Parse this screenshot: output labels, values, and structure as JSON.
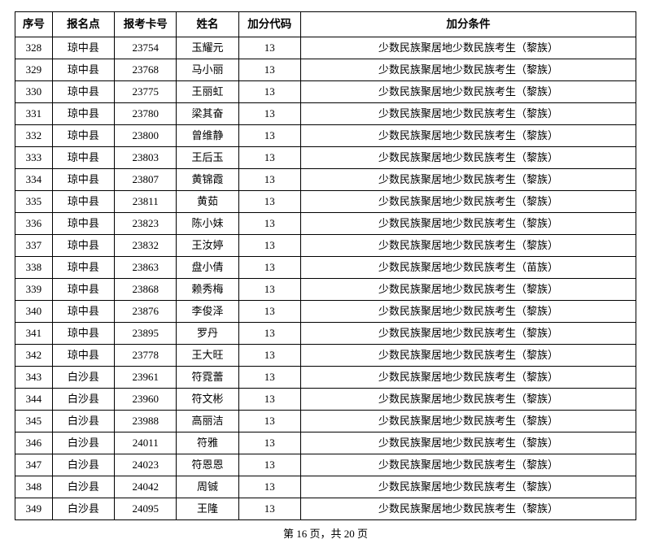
{
  "columns": [
    "序号",
    "报名点",
    "报考卡号",
    "姓名",
    "加分代码",
    "加分条件"
  ],
  "rows": [
    [
      "328",
      "琼中县",
      "23754",
      "玉耀元",
      "13",
      "少数民族聚居地少数民族考生（黎族）"
    ],
    [
      "329",
      "琼中县",
      "23768",
      "马小丽",
      "13",
      "少数民族聚居地少数民族考生（黎族）"
    ],
    [
      "330",
      "琼中县",
      "23775",
      "王丽虹",
      "13",
      "少数民族聚居地少数民族考生（黎族）"
    ],
    [
      "331",
      "琼中县",
      "23780",
      "梁其奋",
      "13",
      "少数民族聚居地少数民族考生（黎族）"
    ],
    [
      "332",
      "琼中县",
      "23800",
      "曾维静",
      "13",
      "少数民族聚居地少数民族考生（黎族）"
    ],
    [
      "333",
      "琼中县",
      "23803",
      "王后玉",
      "13",
      "少数民族聚居地少数民族考生（黎族）"
    ],
    [
      "334",
      "琼中县",
      "23807",
      "黄锦霞",
      "13",
      "少数民族聚居地少数民族考生（黎族）"
    ],
    [
      "335",
      "琼中县",
      "23811",
      "黄茹",
      "13",
      "少数民族聚居地少数民族考生（黎族）"
    ],
    [
      "336",
      "琼中县",
      "23823",
      "陈小妹",
      "13",
      "少数民族聚居地少数民族考生（黎族）"
    ],
    [
      "337",
      "琼中县",
      "23832",
      "王汝婷",
      "13",
      "少数民族聚居地少数民族考生（黎族）"
    ],
    [
      "338",
      "琼中县",
      "23863",
      "盘小倩",
      "13",
      "少数民族聚居地少数民族考生（苗族）"
    ],
    [
      "339",
      "琼中县",
      "23868",
      "赖秀梅",
      "13",
      "少数民族聚居地少数民族考生（黎族）"
    ],
    [
      "340",
      "琼中县",
      "23876",
      "李俊泽",
      "13",
      "少数民族聚居地少数民族考生（黎族）"
    ],
    [
      "341",
      "琼中县",
      "23895",
      "罗丹",
      "13",
      "少数民族聚居地少数民族考生（黎族）"
    ],
    [
      "342",
      "琼中县",
      "23778",
      "王大旺",
      "13",
      "少数民族聚居地少数民族考生（黎族）"
    ],
    [
      "343",
      "白沙县",
      "23961",
      "符霓蕾",
      "13",
      "少数民族聚居地少数民族考生（黎族）"
    ],
    [
      "344",
      "白沙县",
      "23960",
      "符文彬",
      "13",
      "少数民族聚居地少数民族考生（黎族）"
    ],
    [
      "345",
      "白沙县",
      "23988",
      "高丽洁",
      "13",
      "少数民族聚居地少数民族考生（黎族）"
    ],
    [
      "346",
      "白沙县",
      "24011",
      "符雅",
      "13",
      "少数民族聚居地少数民族考生（黎族）"
    ],
    [
      "347",
      "白沙县",
      "24023",
      "符恩恩",
      "13",
      "少数民族聚居地少数民族考生（黎族）"
    ],
    [
      "348",
      "白沙县",
      "24042",
      "周铖",
      "13",
      "少数民族聚居地少数民族考生（黎族）"
    ],
    [
      "349",
      "白沙县",
      "24095",
      "王隆",
      "13",
      "少数民族聚居地少数民族考生（黎族）"
    ]
  ],
  "footer": "第 16 页，共 20 页"
}
